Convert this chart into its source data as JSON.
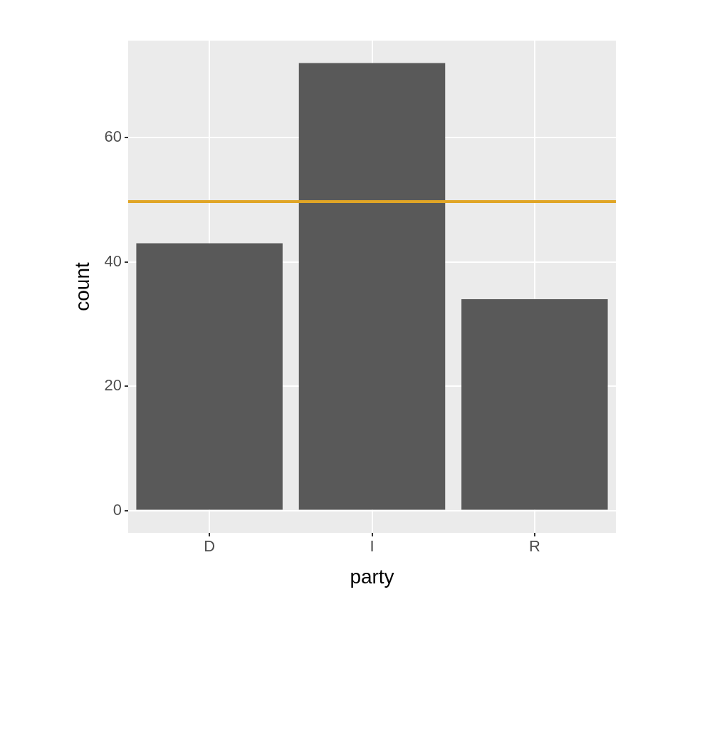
{
  "chart_data": {
    "type": "bar",
    "xlabel": "party",
    "ylabel": "count",
    "categories": [
      "D",
      "I",
      "R"
    ],
    "values": [
      43,
      72,
      34
    ],
    "color": "#595959",
    "ylim": [
      -3.6,
      75.6
    ],
    "yticks": [
      0,
      20,
      40,
      60
    ],
    "grid": true,
    "ref_lines": [
      {
        "axis": "y",
        "value": 49.7,
        "color": "#e0a526"
      }
    ]
  }
}
